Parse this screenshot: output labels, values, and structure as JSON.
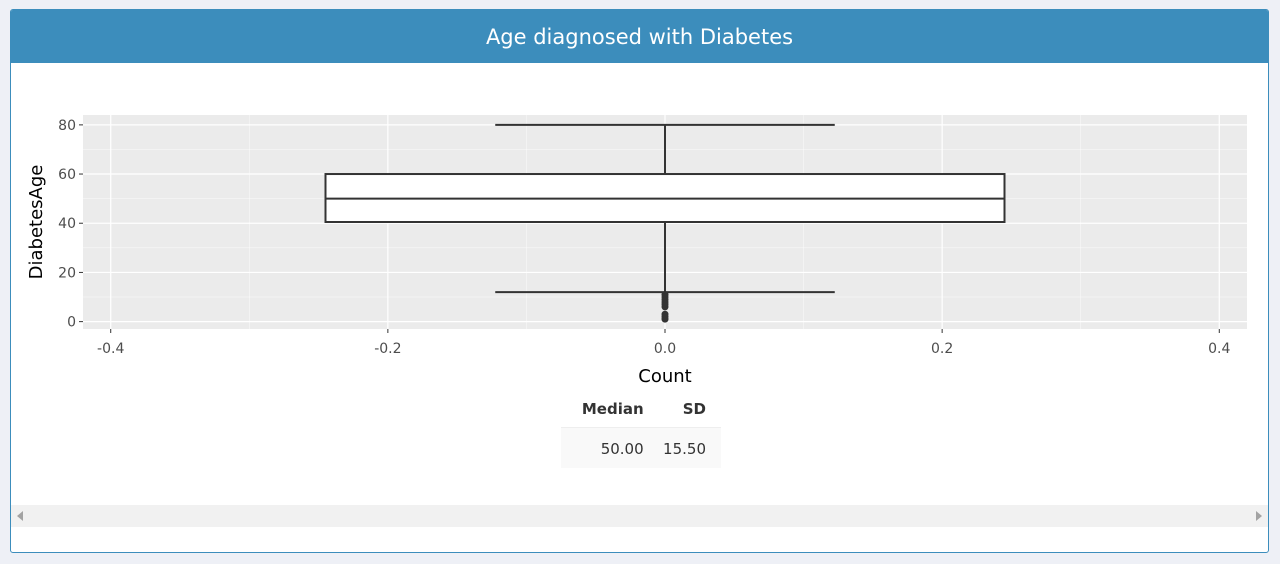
{
  "panel": {
    "title": "Age diagnosed with Diabetes"
  },
  "chart_data": {
    "type": "box",
    "xlabel": "Count",
    "ylabel": "DiabetesAge",
    "xlim": [
      -0.42,
      0.42
    ],
    "ylim": [
      -3,
      84
    ],
    "x_ticks": [
      -0.4,
      -0.2,
      0.0,
      0.2,
      0.4
    ],
    "x_tick_labels": [
      "-0.4",
      "-0.2",
      "0.0",
      "0.2",
      "0.4"
    ],
    "y_ticks": [
      0,
      20,
      40,
      60,
      80
    ],
    "y_tick_labels": [
      "0",
      "20",
      "40",
      "60",
      "80"
    ],
    "box": {
      "x_center": 0.0,
      "half_width": 0.245,
      "whisker_cap_half_width": 0.1225,
      "q1": 40.5,
      "median": 50,
      "q3": 60,
      "whisker_low": 12,
      "whisker_high": 80
    },
    "outliers": [
      1,
      2,
      3,
      6,
      7,
      8,
      9,
      10,
      11
    ],
    "grid": true,
    "background": "#ebebeb",
    "gridline_color": "#ffffff",
    "box_stroke": "#333333",
    "box_fill": "#ffffff"
  },
  "stats": {
    "headers": [
      "Median",
      "SD"
    ],
    "row": [
      "50.00",
      "15.50"
    ]
  }
}
